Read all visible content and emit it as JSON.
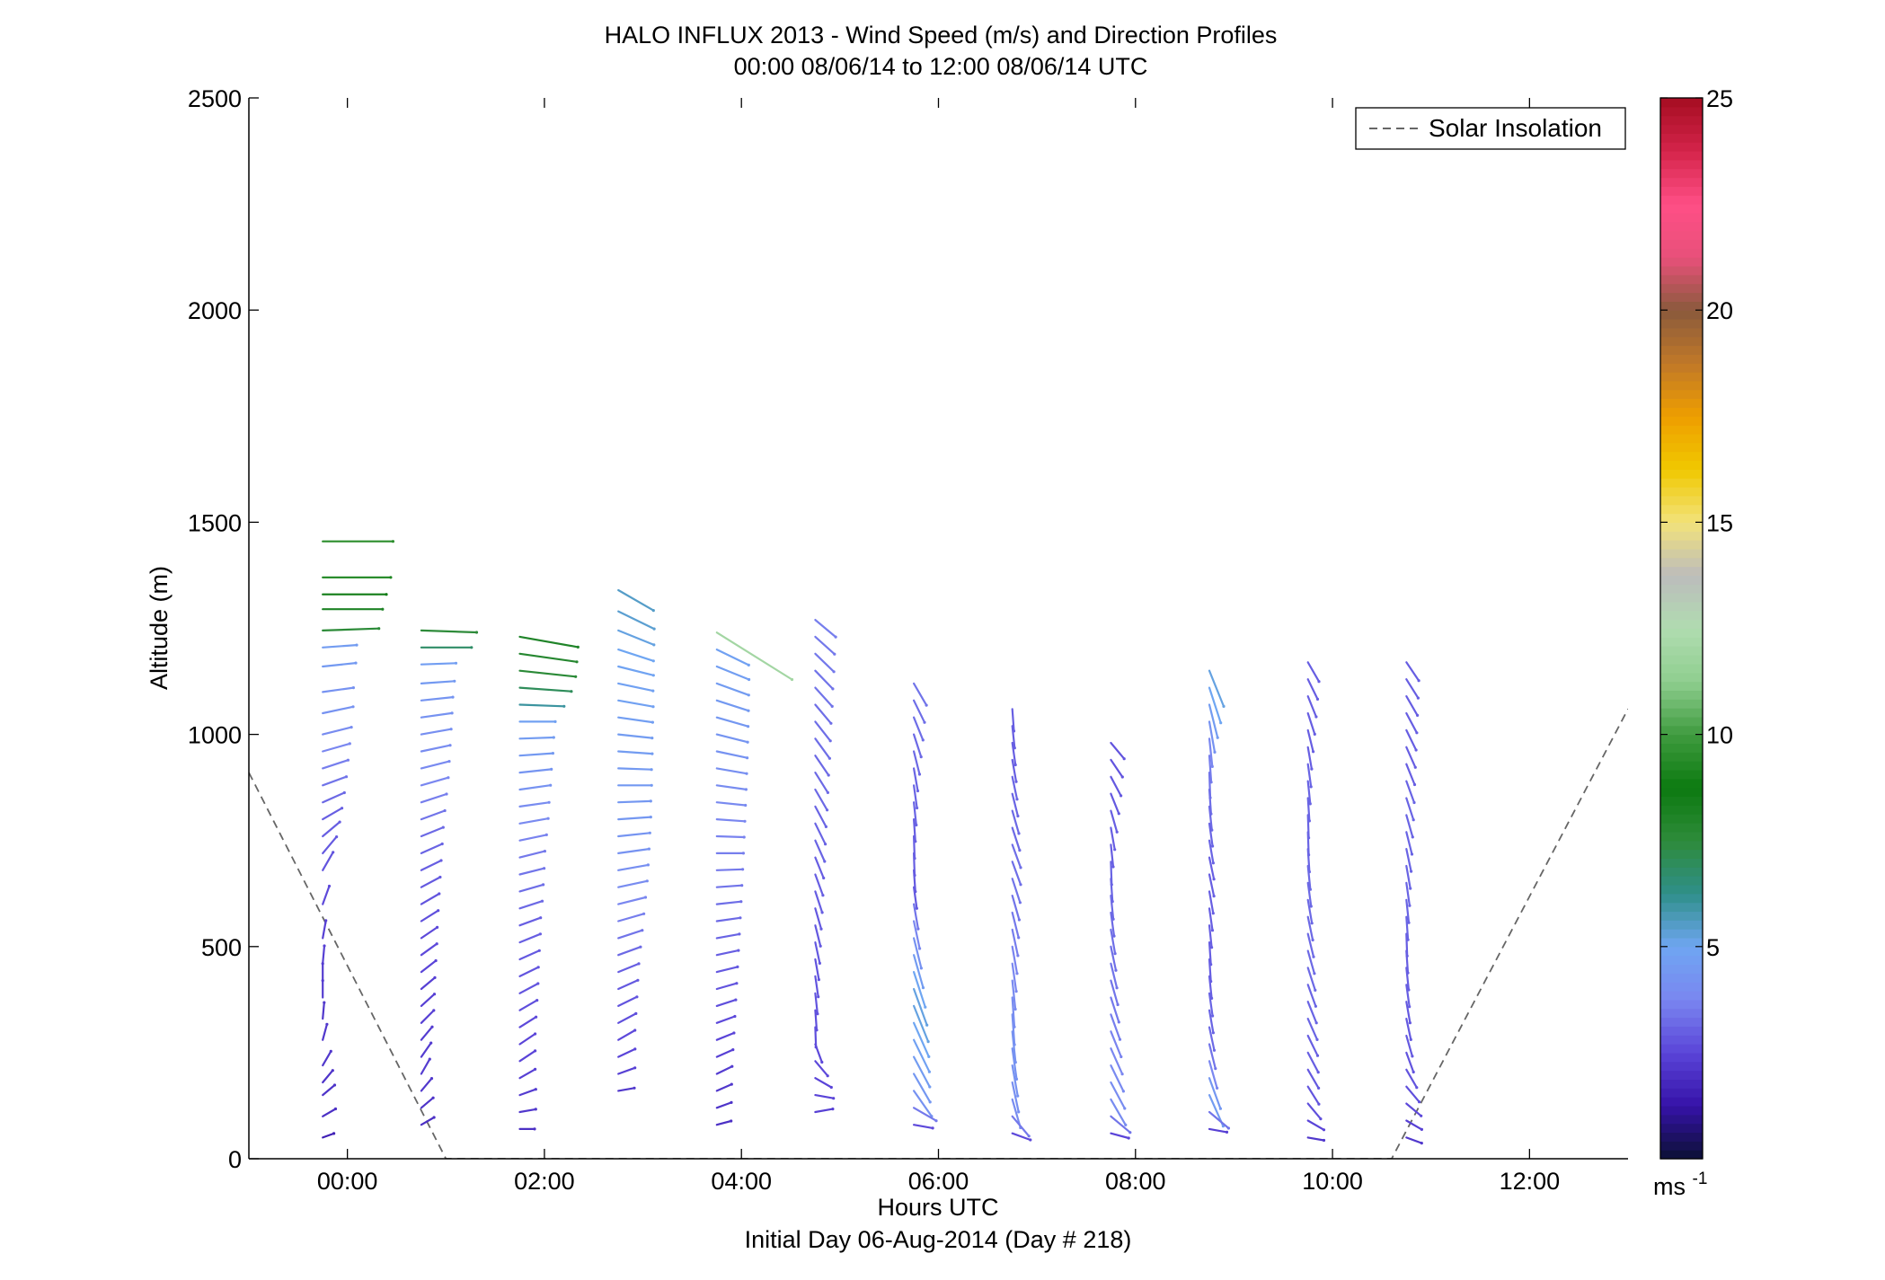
{
  "chart_data": {
    "type": "vector-field",
    "title": "HALO INFLUX 2013 - Wind Speed (m/s) and Direction Profiles",
    "subtitle": "00:00 08/06/14 to 12:00 08/06/14  UTC",
    "xlabel": "Hours UTC",
    "xlabel2": "Initial Day 06-Aug-2014 (Day # 218)",
    "ylabel": "Altitude (m)",
    "xlim": [
      -1,
      13
    ],
    "ylim": [
      0,
      2500
    ],
    "x_ticks": [
      {
        "value": 0,
        "label": "00:00"
      },
      {
        "value": 2,
        "label": "02:00"
      },
      {
        "value": 4,
        "label": "04:00"
      },
      {
        "value": 6,
        "label": "06:00"
      },
      {
        "value": 8,
        "label": "08:00"
      },
      {
        "value": 10,
        "label": "10:00"
      },
      {
        "value": 12,
        "label": "12:00"
      }
    ],
    "y_ticks": [
      0,
      500,
      1000,
      1500,
      2000,
      2500
    ],
    "colorbar": {
      "min": 0,
      "max": 25,
      "ticks": [
        5,
        10,
        15,
        20,
        25
      ],
      "unit_base": "ms",
      "unit_exp": "-1",
      "colors": [
        "#0b1034",
        "#3612a8",
        "#5a44d8",
        "#7a86f0",
        "#6fa6f2",
        "#2f8f8a",
        "#2e8b3a",
        "#0c7a10",
        "#3f9b3f",
        "#8fce8f",
        "#b0dcb0",
        "#bcbcbc",
        "#f2e27a",
        "#f0c800",
        "#ee9e00",
        "#c07828",
        "#8a5a3c",
        "#e8507a",
        "#ff4f86",
        "#d4244a",
        "#a50d22"
      ]
    },
    "legend": {
      "label": "Solar Insolation",
      "position": "top-right",
      "style": "dashed"
    },
    "solar_insolation": {
      "x": [
        -1.0,
        1.0,
        10.6,
        13.0
      ],
      "y": [
        910,
        0,
        0,
        1060
      ]
    },
    "vector_scale_hours_per_ms": 0.075,
    "profiles": [
      {
        "t": 0.0,
        "alts": [
          1455,
          1370,
          1330,
          1295,
          1245,
          1205,
          1160,
          1100,
          1050,
          1000,
          960,
          920,
          880,
          840,
          800,
          760,
          720,
          680,
          600,
          520,
          460,
          420,
          380,
          330,
          280,
          220,
          180,
          150,
          100,
          50
        ],
        "speeds": [
          9.5,
          9.2,
          8.6,
          8.1,
          7.6,
          4.6,
          4.5,
          4.2,
          4.2,
          4.0,
          3.8,
          3.6,
          3.4,
          3.2,
          3.0,
          3.0,
          2.9,
          2.8,
          2.6,
          2.4,
          2.4,
          2.3,
          2.3,
          2.2,
          2.2,
          2.2,
          2.1,
          2.1,
          2.0,
          1.6
        ],
        "dirs": [
          270,
          270,
          270,
          270,
          268,
          266,
          264,
          262,
          258,
          256,
          254,
          252,
          250,
          246,
          240,
          230,
          220,
          210,
          200,
          190,
          185,
          180,
          180,
          185,
          195,
          210,
          220,
          230,
          240,
          250
        ]
      },
      {
        "t": 1.0,
        "alts": [
          1245,
          1205,
          1165,
          1120,
          1080,
          1040,
          1000,
          960,
          920,
          880,
          840,
          800,
          760,
          720,
          680,
          640,
          600,
          560,
          520,
          480,
          440,
          400,
          360,
          320,
          280,
          240,
          200,
          160,
          120,
          80
        ],
        "speeds": [
          7.5,
          6.8,
          4.7,
          4.5,
          4.3,
          4.2,
          4.1,
          4.0,
          3.9,
          3.8,
          3.6,
          3.4,
          3.2,
          3.1,
          3.0,
          2.9,
          2.8,
          2.7,
          2.6,
          2.6,
          2.5,
          2.4,
          2.4,
          2.4,
          2.3,
          2.3,
          2.3,
          2.2,
          2.1,
          2.0
        ],
        "dirs": [
          272,
          270,
          268,
          266,
          264,
          262,
          260,
          258,
          256,
          254,
          252,
          250,
          248,
          246,
          244,
          242,
          240,
          238,
          236,
          234,
          232,
          230,
          228,
          225,
          220,
          215,
          210,
          220,
          230,
          240
        ]
      },
      {
        "t": 2.0,
        "alts": [
          1230,
          1190,
          1150,
          1110,
          1070,
          1030,
          990,
          950,
          910,
          870,
          830,
          790,
          750,
          710,
          670,
          630,
          590,
          550,
          510,
          470,
          430,
          390,
          350,
          310,
          270,
          230,
          190,
          150,
          110,
          70
        ],
        "speeds": [
          8.0,
          7.8,
          7.6,
          7.0,
          6.0,
          4.8,
          4.6,
          4.5,
          4.3,
          4.2,
          4.0,
          3.9,
          3.7,
          3.5,
          3.4,
          3.3,
          3.2,
          3.0,
          3.0,
          2.9,
          2.8,
          2.8,
          2.7,
          2.6,
          2.5,
          2.5,
          2.4,
          2.3,
          2.2,
          2.0
        ],
        "dirs": [
          280,
          278,
          276,
          274,
          272,
          270,
          268,
          266,
          264,
          262,
          262,
          260,
          258,
          256,
          256,
          254,
          252,
          250,
          248,
          246,
          244,
          242,
          240,
          238,
          236,
          236,
          240,
          250,
          260,
          270
        ]
      },
      {
        "t": 3.0,
        "alts": [
          1340,
          1290,
          1245,
          1200,
          1160,
          1120,
          1080,
          1040,
          1000,
          960,
          920,
          880,
          840,
          800,
          760,
          720,
          680,
          640,
          600,
          560,
          520,
          480,
          440,
          400,
          360,
          320,
          280,
          240,
          200,
          160
        ],
        "speeds": [
          5.5,
          5.4,
          5.2,
          5.0,
          4.9,
          4.8,
          4.8,
          4.7,
          4.6,
          4.6,
          4.5,
          4.5,
          4.4,
          4.4,
          4.3,
          4.2,
          4.1,
          4.0,
          3.8,
          3.6,
          3.4,
          3.2,
          3.0,
          2.9,
          2.8,
          2.7,
          2.6,
          2.5,
          2.4,
          2.2
        ],
        "dirs": [
          300,
          296,
          292,
          288,
          284,
          282,
          280,
          278,
          276,
          274,
          272,
          270,
          268,
          266,
          264,
          262,
          260,
          258,
          256,
          254,
          252,
          250,
          248,
          246,
          244,
          242,
          240,
          245,
          250,
          260
        ]
      },
      {
        "t": 4.0,
        "alts": [
          1240,
          1200,
          1160,
          1120,
          1080,
          1040,
          1000,
          960,
          920,
          880,
          840,
          800,
          760,
          720,
          680,
          640,
          600,
          560,
          520,
          480,
          440,
          400,
          360,
          320,
          280,
          240,
          200,
          160,
          120,
          80
        ],
        "speeds": [
          12.0,
          4.8,
          4.7,
          4.6,
          4.5,
          4.4,
          4.3,
          4.2,
          4.1,
          4.0,
          3.9,
          3.8,
          3.7,
          3.6,
          3.5,
          3.4,
          3.3,
          3.2,
          3.1,
          3.0,
          2.9,
          2.8,
          2.7,
          2.6,
          2.5,
          2.4,
          2.3,
          2.2,
          2.1,
          2.0
        ],
        "dirs": [
          302,
          296,
          292,
          290,
          288,
          286,
          284,
          282,
          280,
          278,
          276,
          274,
          272,
          270,
          268,
          266,
          264,
          262,
          260,
          258,
          256,
          254,
          252,
          250,
          248,
          246,
          244,
          246,
          250,
          255
        ]
      },
      {
        "t": 5.0,
        "alts": [
          1270,
          1230,
          1190,
          1150,
          1110,
          1070,
          1030,
          990,
          950,
          910,
          870,
          830,
          790,
          750,
          710,
          670,
          630,
          590,
          550,
          510,
          470,
          430,
          390,
          350,
          310,
          270,
          230,
          190,
          150,
          110
        ],
        "speeds": [
          3.6,
          3.5,
          3.5,
          3.4,
          3.4,
          3.3,
          3.3,
          3.3,
          3.2,
          3.2,
          3.2,
          3.1,
          3.1,
          3.1,
          3.0,
          3.0,
          3.0,
          2.9,
          2.9,
          2.9,
          2.8,
          2.8,
          2.8,
          2.7,
          2.7,
          2.6,
          2.6,
          2.5,
          2.5,
          2.4
        ],
        "dirs": [
          310,
          312,
          314,
          316,
          318,
          320,
          322,
          324,
          326,
          328,
          330,
          332,
          334,
          336,
          338,
          340,
          342,
          344,
          346,
          348,
          350,
          352,
          354,
          356,
          358,
          340,
          320,
          300,
          280,
          260
        ]
      },
      {
        "t": 6.0,
        "alts": [
          1120,
          1080,
          1040,
          1000,
          960,
          920,
          880,
          840,
          800,
          760,
          720,
          680,
          640,
          600,
          560,
          520,
          480,
          440,
          400,
          360,
          320,
          280,
          240,
          200,
          160,
          120,
          80
        ],
        "speeds": [
          3.4,
          3.3,
          3.3,
          3.2,
          3.2,
          3.1,
          3.1,
          3.1,
          3.0,
          3.0,
          3.0,
          2.9,
          2.9,
          3.4,
          3.8,
          4.2,
          4.6,
          5.0,
          5.2,
          5.2,
          5.0,
          4.8,
          4.6,
          4.4,
          4.2,
          3.5,
          2.6
        ],
        "dirs": [
          330,
          334,
          338,
          342,
          346,
          350,
          352,
          354,
          356,
          358,
          358,
          356,
          352,
          350,
          348,
          346,
          344,
          342,
          340,
          338,
          336,
          334,
          332,
          330,
          325,
          300,
          280
        ]
      },
      {
        "t": 7.0,
        "alts": [
          1060,
          1020,
          980,
          940,
          900,
          860,
          820,
          780,
          740,
          700,
          660,
          620,
          580,
          540,
          500,
          460,
          420,
          380,
          340,
          300,
          260,
          220,
          180,
          140,
          100,
          60
        ],
        "speeds": [
          3.0,
          3.0,
          3.0,
          3.0,
          3.1,
          3.1,
          3.2,
          3.2,
          3.3,
          3.3,
          3.4,
          3.4,
          3.5,
          3.6,
          3.7,
          3.8,
          3.9,
          4.0,
          4.1,
          4.2,
          4.2,
          4.2,
          4.1,
          4.0,
          3.5,
          2.6
        ],
        "dirs": [
          356,
          354,
          352,
          350,
          348,
          346,
          344,
          342,
          340,
          340,
          342,
          344,
          346,
          348,
          350,
          352,
          354,
          356,
          356,
          354,
          352,
          350,
          348,
          344,
          320,
          290
        ]
      },
      {
        "t": 8.0,
        "alts": [
          980,
          940,
          900,
          860,
          820,
          780,
          740,
          700,
          660,
          620,
          580,
          540,
          500,
          460,
          420,
          380,
          340,
          300,
          260,
          220,
          180,
          140,
          100,
          60
        ],
        "speeds": [
          2.8,
          2.8,
          2.9,
          2.9,
          3.0,
          3.0,
          3.0,
          3.1,
          3.1,
          3.2,
          3.2,
          3.3,
          3.3,
          3.4,
          3.4,
          3.5,
          3.6,
          3.7,
          3.8,
          3.9,
          4.0,
          4.0,
          3.4,
          2.5
        ],
        "dirs": [
          320,
          326,
          332,
          338,
          344,
          350,
          354,
          358,
          356,
          354,
          352,
          350,
          348,
          346,
          344,
          342,
          340,
          338,
          336,
          334,
          332,
          330,
          310,
          285
        ]
      },
      {
        "t": 9.0,
        "alts": [
          1150,
          1110,
          1070,
          1030,
          990,
          950,
          910,
          870,
          830,
          790,
          750,
          710,
          670,
          630,
          590,
          550,
          510,
          470,
          430,
          390,
          350,
          310,
          270,
          230,
          190,
          150,
          110,
          70
        ],
        "speeds": [
          5.2,
          5.0,
          4.6,
          4.2,
          3.8,
          3.6,
          3.4,
          3.3,
          3.2,
          3.1,
          3.1,
          3.0,
          3.0,
          3.0,
          3.0,
          3.0,
          3.0,
          3.0,
          3.0,
          3.1,
          3.1,
          3.2,
          3.4,
          3.8,
          4.4,
          4.6,
          3.4,
          2.4
        ],
        "dirs": [
          338,
          342,
          346,
          350,
          354,
          356,
          358,
          356,
          354,
          352,
          350,
          348,
          348,
          350,
          352,
          354,
          356,
          356,
          354,
          352,
          350,
          348,
          346,
          344,
          340,
          336,
          310,
          280
        ]
      },
      {
        "t": 10.0,
        "alts": [
          1170,
          1130,
          1090,
          1050,
          1010,
          970,
          930,
          890,
          850,
          810,
          770,
          730,
          690,
          650,
          610,
          570,
          530,
          490,
          450,
          410,
          370,
          330,
          290,
          250,
          210,
          170,
          130,
          90,
          50
        ],
        "speeds": [
          3.0,
          3.0,
          3.0,
          3.0,
          3.0,
          3.0,
          3.1,
          3.1,
          3.1,
          3.1,
          3.1,
          3.1,
          3.2,
          3.2,
          3.2,
          3.2,
          3.2,
          3.2,
          3.2,
          3.1,
          3.1,
          3.1,
          3.0,
          3.0,
          2.9,
          2.8,
          2.7,
          2.5,
          2.2
        ],
        "dirs": [
          330,
          334,
          338,
          342,
          346,
          350,
          352,
          354,
          356,
          358,
          358,
          356,
          354,
          352,
          350,
          348,
          346,
          344,
          342,
          340,
          338,
          336,
          334,
          332,
          330,
          328,
          320,
          300,
          280
        ]
      },
      {
        "t": 11.0,
        "alts": [
          1170,
          1130,
          1090,
          1050,
          1010,
          970,
          930,
          890,
          850,
          810,
          770,
          730,
          690,
          650,
          610,
          570,
          530,
          490,
          450,
          410,
          370,
          330,
          290,
          250,
          210,
          170,
          130,
          90,
          50
        ],
        "speeds": [
          3.0,
          3.0,
          3.0,
          3.0,
          3.0,
          3.0,
          3.0,
          3.1,
          3.1,
          3.1,
          3.1,
          3.1,
          3.1,
          3.1,
          3.1,
          3.1,
          3.0,
          3.0,
          3.0,
          3.0,
          2.9,
          2.9,
          2.9,
          2.8,
          2.8,
          2.7,
          2.6,
          2.4,
          2.2
        ],
        "dirs": [
          326,
          328,
          330,
          332,
          334,
          336,
          338,
          340,
          342,
          344,
          346,
          348,
          350,
          352,
          354,
          356,
          358,
          356,
          354,
          352,
          350,
          348,
          344,
          340,
          330,
          320,
          310,
          300,
          290
        ]
      }
    ]
  }
}
